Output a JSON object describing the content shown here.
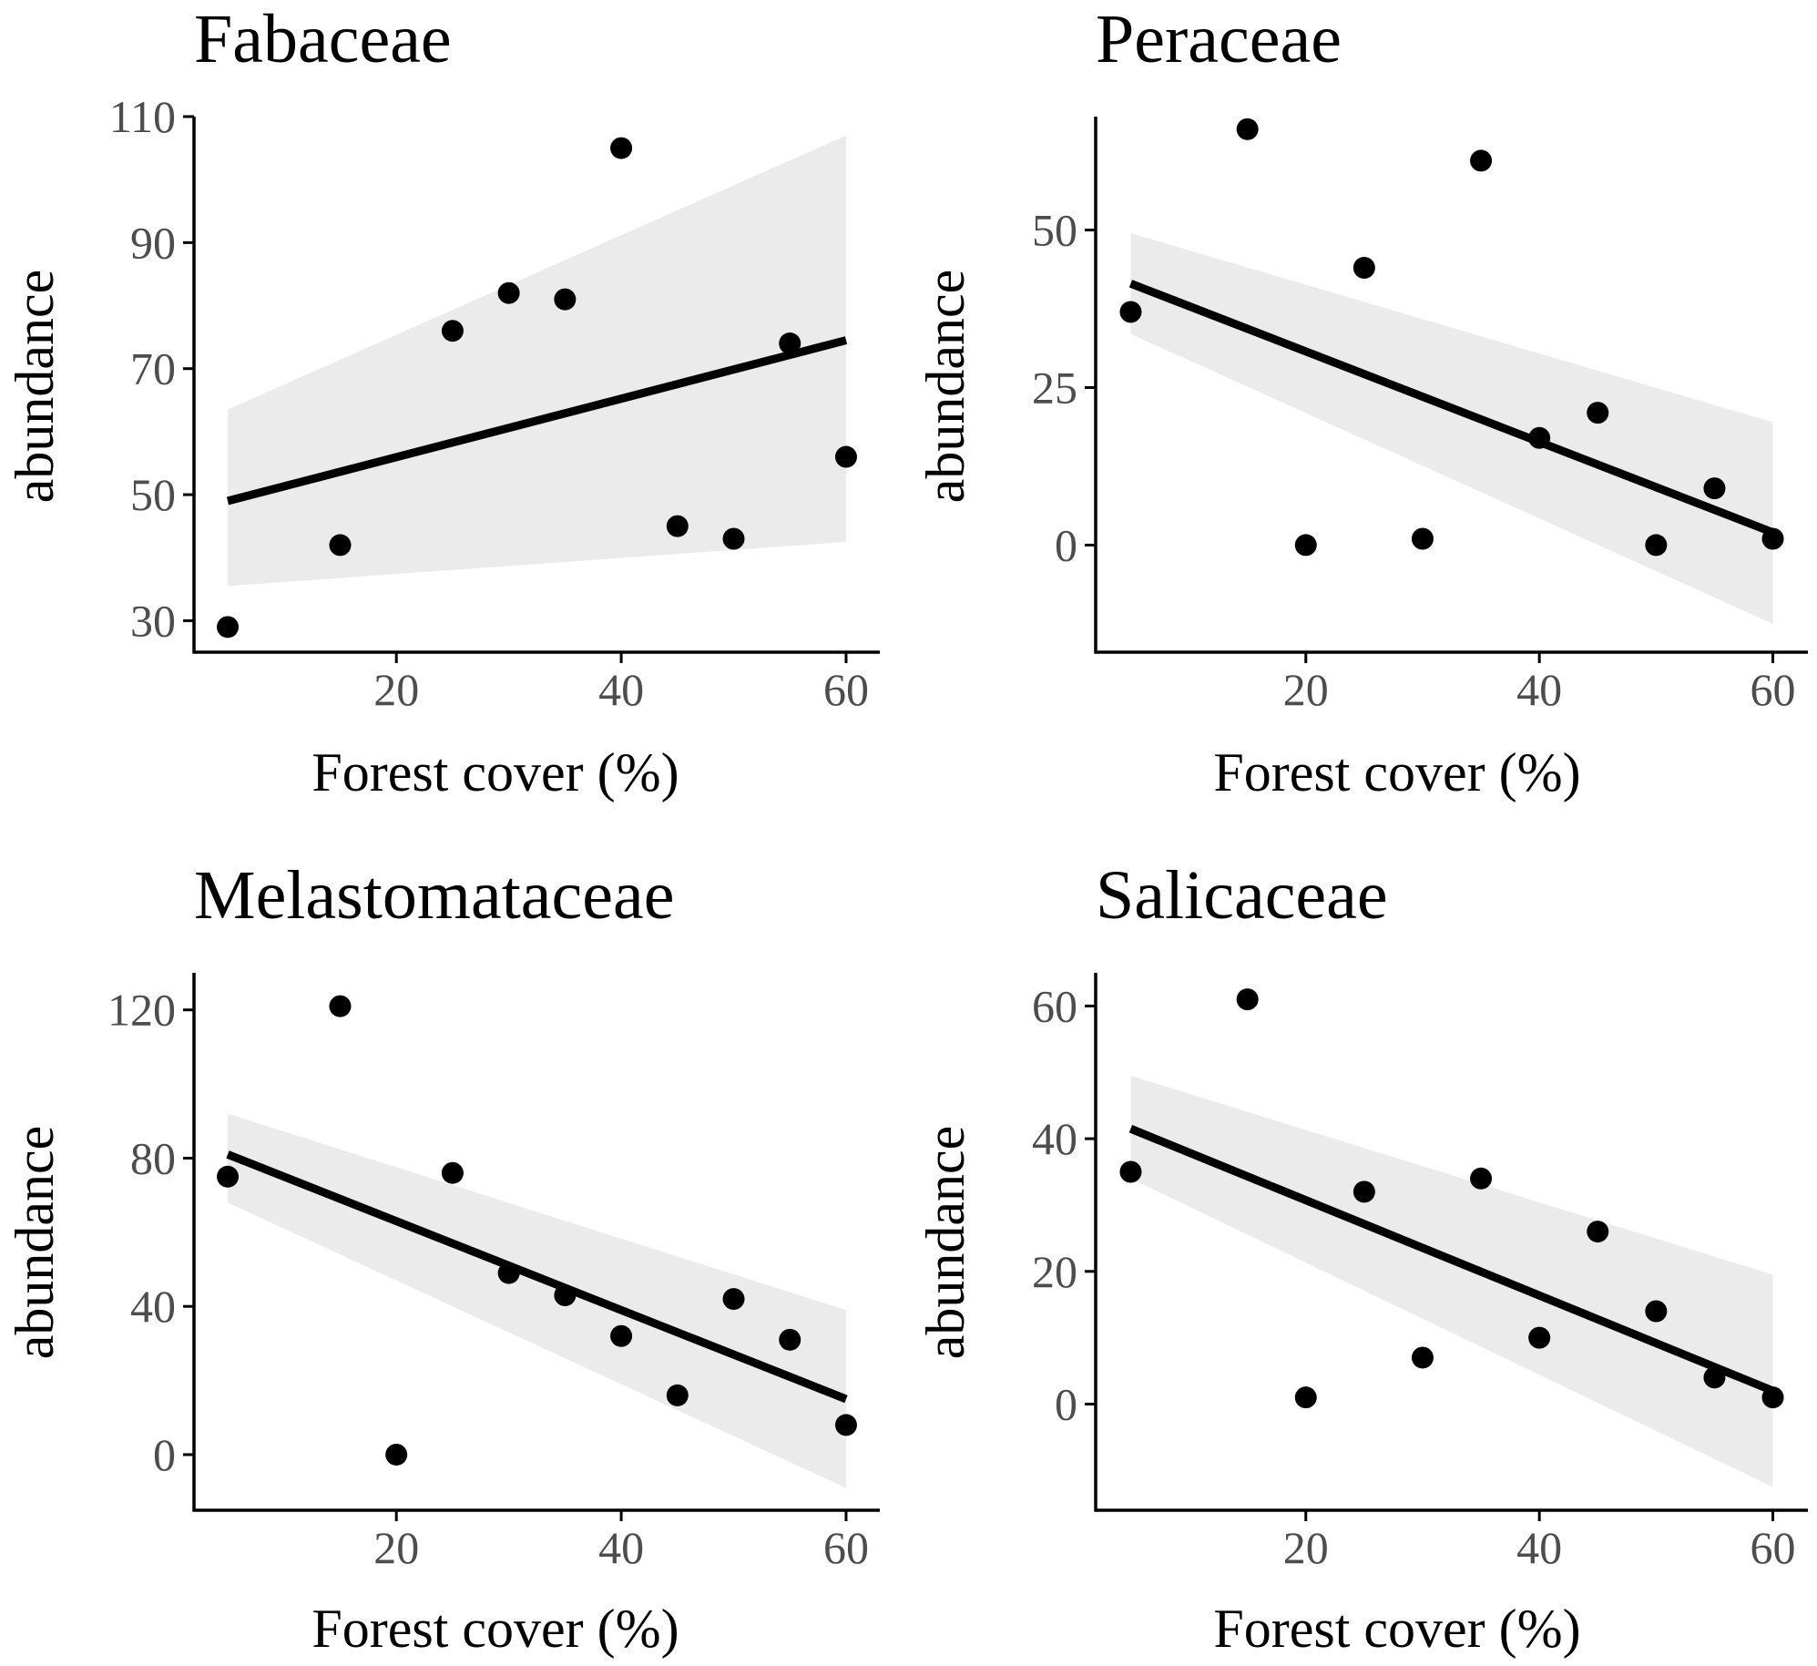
{
  "colors": {
    "point": "#000000",
    "line": "#000000",
    "ribbon": "#ebebeb",
    "axis": "#000000",
    "tick_text": "#4d4d4d",
    "background": "#ffffff"
  },
  "chart_data": [
    {
      "type": "scatter",
      "title": "Fabaceae",
      "xlabel": "Forest cover (%)",
      "ylabel": "abundance",
      "xlim": [
        2,
        63
      ],
      "ylim": [
        25,
        110
      ],
      "xticks": [
        20,
        40,
        60
      ],
      "yticks": [
        30,
        50,
        70,
        90,
        110
      ],
      "grid": false,
      "legend": "none",
      "points": [
        {
          "x": 5,
          "y": 29
        },
        {
          "x": 15,
          "y": 42
        },
        {
          "x": 25,
          "y": 76
        },
        {
          "x": 30,
          "y": 82
        },
        {
          "x": 35,
          "y": 81
        },
        {
          "x": 40,
          "y": 105
        },
        {
          "x": 45,
          "y": 45
        },
        {
          "x": 50,
          "y": 43
        },
        {
          "x": 55,
          "y": 74
        },
        {
          "x": 60,
          "y": 56
        }
      ],
      "fit": {
        "x": [
          5,
          60
        ],
        "y": [
          49,
          74.5
        ]
      },
      "ribbon": {
        "x": [
          5,
          60
        ],
        "lower": [
          35.5,
          42.5
        ],
        "upper": [
          63.5,
          107
        ]
      }
    },
    {
      "type": "scatter",
      "title": "Peraceae",
      "xlabel": "Forest cover (%)",
      "ylabel": "abundance",
      "xlim": [
        2,
        63
      ],
      "ylim": [
        -17,
        68
      ],
      "xticks": [
        20,
        40,
        60
      ],
      "yticks": [
        0,
        25,
        50
      ],
      "grid": false,
      "legend": "none",
      "points": [
        {
          "x": 5,
          "y": 37
        },
        {
          "x": 15,
          "y": 66
        },
        {
          "x": 20,
          "y": 0
        },
        {
          "x": 25,
          "y": 44
        },
        {
          "x": 30,
          "y": 1
        },
        {
          "x": 35,
          "y": 61
        },
        {
          "x": 40,
          "y": 17
        },
        {
          "x": 45,
          "y": 21
        },
        {
          "x": 50,
          "y": 0
        },
        {
          "x": 55,
          "y": 9
        },
        {
          "x": 60,
          "y": 1
        }
      ],
      "fit": {
        "x": [
          5,
          60
        ],
        "y": [
          41.5,
          2
        ]
      },
      "ribbon": {
        "x": [
          5,
          60
        ],
        "lower": [
          33.5,
          -12.5
        ],
        "upper": [
          49.5,
          19.5
        ]
      }
    },
    {
      "type": "scatter",
      "title": "Melastomataceae",
      "xlabel": "Forest cover (%)",
      "ylabel": "abundance",
      "xlim": [
        2,
        63
      ],
      "ylim": [
        -15,
        130
      ],
      "xticks": [
        20,
        40,
        60
      ],
      "yticks": [
        0,
        40,
        80,
        120
      ],
      "grid": false,
      "legend": "none",
      "points": [
        {
          "x": 5,
          "y": 75
        },
        {
          "x": 15,
          "y": 121
        },
        {
          "x": 20,
          "y": 0
        },
        {
          "x": 25,
          "y": 76
        },
        {
          "x": 30,
          "y": 49
        },
        {
          "x": 35,
          "y": 43
        },
        {
          "x": 40,
          "y": 32
        },
        {
          "x": 45,
          "y": 16
        },
        {
          "x": 50,
          "y": 42
        },
        {
          "x": 55,
          "y": 31
        },
        {
          "x": 60,
          "y": 8
        }
      ],
      "fit": {
        "x": [
          5,
          60
        ],
        "y": [
          81,
          15
        ]
      },
      "ribbon": {
        "x": [
          5,
          60
        ],
        "lower": [
          68,
          -9
        ],
        "upper": [
          92,
          39
        ]
      }
    },
    {
      "type": "scatter",
      "title": "Salicaceae",
      "xlabel": "Forest cover (%)",
      "ylabel": "abundance",
      "xlim": [
        2,
        63
      ],
      "ylim": [
        -16,
        65
      ],
      "xticks": [
        20,
        40,
        60
      ],
      "yticks": [
        0,
        20,
        40,
        60
      ],
      "grid": false,
      "legend": "none",
      "points": [
        {
          "x": 5,
          "y": 35
        },
        {
          "x": 15,
          "y": 61
        },
        {
          "x": 20,
          "y": 1
        },
        {
          "x": 25,
          "y": 32
        },
        {
          "x": 30,
          "y": 7
        },
        {
          "x": 35,
          "y": 34
        },
        {
          "x": 40,
          "y": 10
        },
        {
          "x": 45,
          "y": 26
        },
        {
          "x": 50,
          "y": 14
        },
        {
          "x": 55,
          "y": 4
        },
        {
          "x": 60,
          "y": 1
        }
      ],
      "fit": {
        "x": [
          5,
          60
        ],
        "y": [
          41.5,
          2
        ]
      },
      "ribbon": {
        "x": [
          5,
          60
        ],
        "lower": [
          34,
          -12.5
        ],
        "upper": [
          49.5,
          19.5
        ]
      }
    }
  ]
}
